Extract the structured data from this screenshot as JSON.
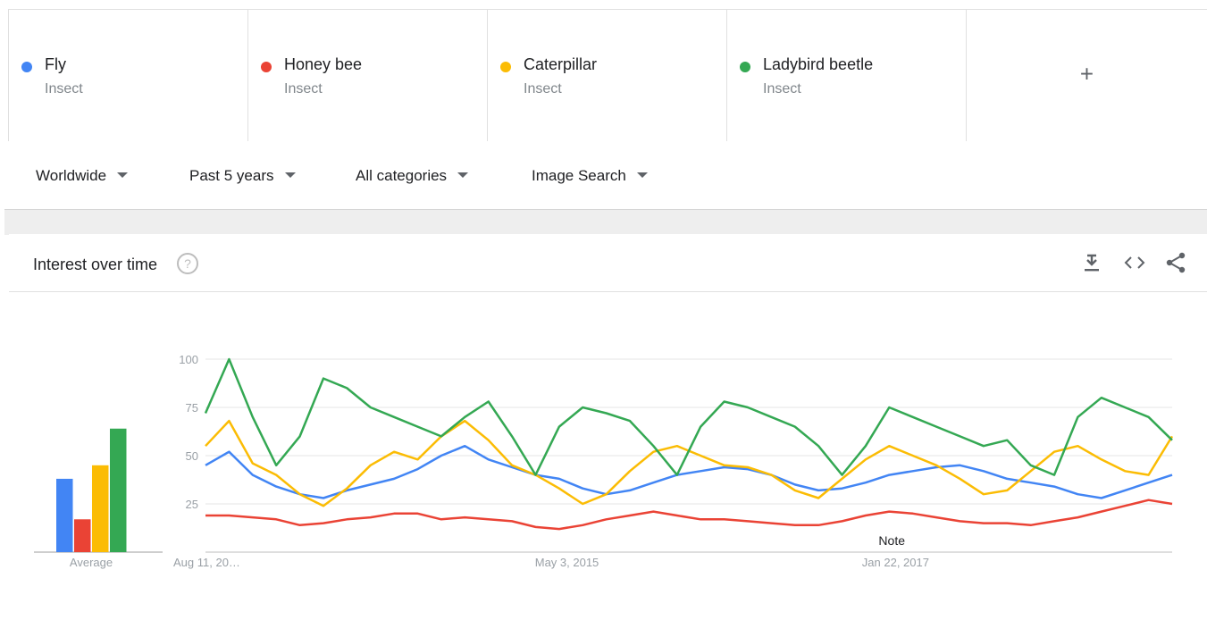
{
  "terms": [
    {
      "name": "Fly",
      "type": "Insect",
      "color": "#4285f4"
    },
    {
      "name": "Honey bee",
      "type": "Insect",
      "color": "#ea4335"
    },
    {
      "name": "Caterpillar",
      "type": "Insect",
      "color": "#fbbc04"
    },
    {
      "name": "Ladybird beetle",
      "type": "Insect",
      "color": "#34a853"
    }
  ],
  "add_term_label": "+",
  "filters": {
    "region": "Worldwide",
    "time_range": "Past 5 years",
    "category": "All categories",
    "search_type": "Image Search"
  },
  "card": {
    "title": "Interest over time",
    "help_label": "?"
  },
  "chart_data": [
    {
      "type": "bar",
      "xlabel": "Average",
      "categories": [
        "Fly",
        "Honey bee",
        "Caterpillar",
        "Ladybird beetle"
      ],
      "values": [
        38,
        17,
        45,
        64
      ],
      "colors": [
        "#4285f4",
        "#ea4335",
        "#fbbc04",
        "#34a853"
      ],
      "ylim": [
        0,
        100
      ]
    },
    {
      "type": "line",
      "ylim": [
        0,
        100
      ],
      "yticks": [
        25,
        50,
        75,
        100
      ],
      "grid": true,
      "x_tick_labels": [
        "Aug 11, 20…",
        "May 3, 2015",
        "Jan 22, 2017"
      ],
      "x_tick_positions": [
        0,
        0.36,
        0.7
      ],
      "annotation": "Note",
      "annotation_position": 0.71,
      "points_per_series": 42,
      "series": [
        {
          "name": "Fly",
          "color": "#4285f4",
          "values": [
            45,
            52,
            40,
            34,
            30,
            28,
            32,
            35,
            38,
            43,
            50,
            55,
            48,
            44,
            40,
            38,
            33,
            30,
            32,
            36,
            40,
            42,
            44,
            43,
            40,
            35,
            32,
            33,
            36,
            40,
            42,
            44,
            45,
            42,
            38,
            36,
            34,
            30,
            28,
            32,
            36,
            40
          ]
        },
        {
          "name": "Honey bee",
          "color": "#ea4335",
          "values": [
            19,
            19,
            18,
            17,
            14,
            15,
            17,
            18,
            20,
            20,
            17,
            18,
            17,
            16,
            13,
            12,
            14,
            17,
            19,
            21,
            19,
            17,
            17,
            16,
            15,
            14,
            14,
            16,
            19,
            21,
            20,
            18,
            16,
            15,
            15,
            14,
            16,
            18,
            21,
            24,
            27,
            25
          ]
        },
        {
          "name": "Caterpillar",
          "color": "#fbbc04",
          "values": [
            55,
            68,
            46,
            40,
            30,
            24,
            33,
            45,
            52,
            48,
            60,
            68,
            58,
            45,
            40,
            33,
            25,
            30,
            42,
            52,
            55,
            50,
            45,
            44,
            40,
            32,
            28,
            38,
            48,
            55,
            50,
            45,
            38,
            30,
            32,
            42,
            52,
            55,
            48,
            42,
            40,
            60
          ]
        },
        {
          "name": "Ladybird beetle",
          "color": "#34a853",
          "values": [
            72,
            100,
            70,
            45,
            60,
            90,
            85,
            75,
            70,
            65,
            60,
            70,
            78,
            60,
            40,
            65,
            75,
            72,
            68,
            55,
            40,
            65,
            78,
            75,
            70,
            65,
            55,
            40,
            55,
            75,
            70,
            65,
            60,
            55,
            58,
            45,
            40,
            70,
            80,
            75,
            70,
            58
          ]
        }
      ]
    }
  ]
}
